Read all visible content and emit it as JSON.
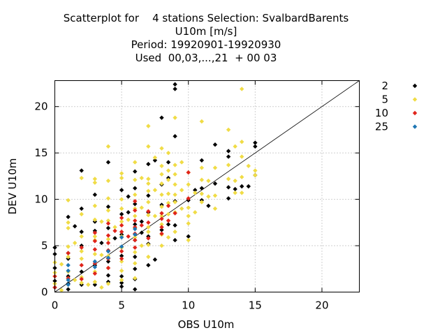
{
  "chart_data": {
    "type": "scatter",
    "title_lines": [
      "Scatterplot for    4 stations Selection: SvalbardBarents",
      "U10m [m/s]",
      "Period: 19920901-19920930",
      "Used  00,03,...,21  + 00 03"
    ],
    "xlabel": "OBS U10m",
    "ylabel": "DEV U10m",
    "xlim": [
      0,
      22.8
    ],
    "ylim": [
      0,
      22.8
    ],
    "xticks": [
      0,
      5,
      10,
      15,
      20
    ],
    "yticks": [
      0,
      5,
      10,
      15,
      20
    ],
    "grid": true,
    "diagonal_line": true,
    "legend_position": "right",
    "colors": {
      "2": "#000000",
      "5": "#f0dc46",
      "10": "#e0241b",
      "25": "#1f77b4"
    },
    "series": [
      {
        "name": "2",
        "points": [
          [
            0,
            4.8
          ],
          [
            0,
            4.1
          ],
          [
            0,
            2.6
          ],
          [
            0,
            1.2
          ],
          [
            0,
            0.5
          ],
          [
            1,
            8.1
          ],
          [
            1,
            4.2
          ],
          [
            1,
            3.6
          ],
          [
            1,
            1.7
          ],
          [
            1,
            0.9
          ],
          [
            1,
            0.3
          ],
          [
            1.5,
            7.1
          ],
          [
            2,
            13.1
          ],
          [
            2,
            9.0
          ],
          [
            2,
            6.5
          ],
          [
            2,
            5.0
          ],
          [
            2,
            2.2
          ],
          [
            2,
            0.8
          ],
          [
            3,
            10.5
          ],
          [
            3,
            7.6
          ],
          [
            3,
            6.6
          ],
          [
            3,
            2.9
          ],
          [
            3,
            0.8
          ],
          [
            3.5,
            5.3
          ],
          [
            4,
            14.0
          ],
          [
            4,
            9.2
          ],
          [
            4,
            6.9
          ],
          [
            4,
            4.4
          ],
          [
            4,
            3.3
          ],
          [
            4,
            1.8
          ],
          [
            4,
            1.1
          ],
          [
            4.5,
            5.8
          ],
          [
            5,
            11.0
          ],
          [
            5,
            8.4
          ],
          [
            5,
            6.2
          ],
          [
            5,
            3.9
          ],
          [
            5,
            1.7
          ],
          [
            5,
            1.0
          ],
          [
            5,
            0.6
          ],
          [
            5.5,
            10.3
          ],
          [
            5.5,
            8.6
          ],
          [
            6,
            13.0
          ],
          [
            6,
            11.2
          ],
          [
            6,
            9.5
          ],
          [
            6,
            7.3
          ],
          [
            6,
            5.6
          ],
          [
            6,
            3.8
          ],
          [
            6,
            2.5
          ],
          [
            6,
            1.4
          ],
          [
            6,
            0.3
          ],
          [
            6.5,
            7.6
          ],
          [
            6.5,
            6.4
          ],
          [
            7,
            13.8
          ],
          [
            7,
            10.4
          ],
          [
            7,
            8.6
          ],
          [
            7,
            6.0
          ],
          [
            7,
            5.2
          ],
          [
            7,
            2.9
          ],
          [
            7.5,
            14.2
          ],
          [
            7.5,
            3.5
          ],
          [
            8,
            18.8
          ],
          [
            8,
            11.6
          ],
          [
            8,
            9.4
          ],
          [
            8,
            6.7
          ],
          [
            8.5,
            14.0
          ],
          [
            8.5,
            12.3
          ],
          [
            8.5,
            7.3
          ],
          [
            9,
            22.4
          ],
          [
            9,
            21.9
          ],
          [
            9,
            16.8
          ],
          [
            9,
            9.8
          ],
          [
            9,
            7.2
          ],
          [
            9,
            5.6
          ],
          [
            10,
            9.9
          ],
          [
            10,
            6.0
          ],
          [
            10.5,
            11.0
          ],
          [
            11,
            14.2
          ],
          [
            11,
            11.2
          ],
          [
            11,
            9.9
          ],
          [
            11.5,
            9.3
          ],
          [
            12,
            15.9
          ],
          [
            12,
            11.7
          ],
          [
            13,
            15.2
          ],
          [
            13,
            14.6
          ],
          [
            13,
            11.3
          ],
          [
            13,
            10.1
          ],
          [
            13.5,
            11.1
          ],
          [
            14,
            11.4
          ],
          [
            14.5,
            11.4
          ],
          [
            15,
            16.1
          ],
          [
            15,
            15.7
          ],
          [
            15,
            12.6
          ]
        ]
      },
      {
        "name": "5",
        "points": [
          [
            0,
            3.2
          ],
          [
            0,
            2.1
          ],
          [
            0,
            1.7
          ],
          [
            0,
            0.9
          ],
          [
            0.5,
            3.0
          ],
          [
            0.5,
            0.2
          ],
          [
            1,
            9.9
          ],
          [
            1,
            7.5
          ],
          [
            1,
            6.9
          ],
          [
            1,
            4.9
          ],
          [
            1,
            3.8
          ],
          [
            1,
            2.2
          ],
          [
            1,
            1.5
          ],
          [
            1.5,
            5.3
          ],
          [
            1.5,
            1.3
          ],
          [
            2,
            12.3
          ],
          [
            2,
            8.4
          ],
          [
            2,
            6.0
          ],
          [
            2,
            4.4
          ],
          [
            2,
            3.6
          ],
          [
            2,
            1.6
          ],
          [
            2,
            1.0
          ],
          [
            2.5,
            0.8
          ],
          [
            3,
            12.2
          ],
          [
            3,
            11.8
          ],
          [
            3,
            9.3
          ],
          [
            3,
            7.8
          ],
          [
            3,
            6.0
          ],
          [
            3,
            5.6
          ],
          [
            3,
            4.1
          ],
          [
            3,
            2.2
          ],
          [
            3,
            1.1
          ],
          [
            3.5,
            7.6
          ],
          [
            3.5,
            4.0
          ],
          [
            3.5,
            0.5
          ],
          [
            4,
            15.7
          ],
          [
            4,
            12.0
          ],
          [
            4,
            10.1
          ],
          [
            4,
            8.8
          ],
          [
            4,
            7.7
          ],
          [
            4,
            5.7
          ],
          [
            4,
            3.9
          ],
          [
            4,
            2.6
          ],
          [
            4,
            0.9
          ],
          [
            4.5,
            7.0
          ],
          [
            5,
            12.8
          ],
          [
            5,
            12.3
          ],
          [
            5,
            10.0
          ],
          [
            5,
            9.0
          ],
          [
            5,
            7.6
          ],
          [
            5,
            6.0
          ],
          [
            5,
            4.8
          ],
          [
            5,
            3.3
          ],
          [
            5,
            2.3
          ],
          [
            5,
            1.3
          ],
          [
            5.5,
            7.8
          ],
          [
            6,
            14.0
          ],
          [
            6,
            12.1
          ],
          [
            6,
            10.5
          ],
          [
            6,
            9.0
          ],
          [
            6,
            8.2
          ],
          [
            6,
            6.9
          ],
          [
            6,
            5.9
          ],
          [
            6,
            4.3
          ],
          [
            6,
            3.1
          ],
          [
            6,
            1.5
          ],
          [
            6.5,
            12.3
          ],
          [
            6.5,
            9.1
          ],
          [
            6.5,
            5.0
          ],
          [
            7,
            17.9
          ],
          [
            7,
            15.7
          ],
          [
            7,
            12.2
          ],
          [
            7,
            11.7
          ],
          [
            7,
            10.9
          ],
          [
            7,
            9.7
          ],
          [
            7,
            8.3
          ],
          [
            7,
            7.0
          ],
          [
            7,
            6.5
          ],
          [
            7,
            5.1
          ],
          [
            7,
            3.8
          ],
          [
            7.5,
            14.5
          ],
          [
            7.5,
            11.0
          ],
          [
            7.5,
            8.2
          ],
          [
            8,
            15.5
          ],
          [
            8,
            13.6
          ],
          [
            8,
            12.7
          ],
          [
            8,
            11.7
          ],
          [
            8,
            10.5
          ],
          [
            8,
            9.2
          ],
          [
            8,
            8.2
          ],
          [
            8,
            7.3
          ],
          [
            8,
            6.2
          ],
          [
            8,
            5.0
          ],
          [
            8.5,
            15.0
          ],
          [
            8.5,
            13.1
          ],
          [
            8.5,
            12.1
          ],
          [
            8.5,
            10.6
          ],
          [
            8.5,
            9.6
          ],
          [
            8.5,
            8.4
          ],
          [
            8.5,
            5.9
          ],
          [
            9,
            18.8
          ],
          [
            9,
            13.7
          ],
          [
            9,
            12.7
          ],
          [
            9,
            11.6
          ],
          [
            9,
            10.5
          ],
          [
            9,
            9.7
          ],
          [
            9,
            8.6
          ],
          [
            9,
            6.5
          ],
          [
            9.5,
            14.0
          ],
          [
            9.5,
            11.0
          ],
          [
            9.5,
            9.0
          ],
          [
            10,
            12.9
          ],
          [
            10,
            11.6
          ],
          [
            10,
            9.1
          ],
          [
            10,
            8.2
          ],
          [
            10,
            7.4
          ],
          [
            10,
            5.6
          ],
          [
            10.5,
            10.7
          ],
          [
            10.5,
            8.6
          ],
          [
            11,
            18.4
          ],
          [
            11,
            13.4
          ],
          [
            11,
            12.1
          ],
          [
            11,
            10.6
          ],
          [
            11,
            9.7
          ],
          [
            11.5,
            12.0
          ],
          [
            11.5,
            10.3
          ],
          [
            12,
            13.4
          ],
          [
            12,
            10.4
          ],
          [
            12,
            9.0
          ],
          [
            13,
            17.5
          ],
          [
            13,
            13.7
          ],
          [
            13,
            12.2
          ],
          [
            13.5,
            15.7
          ],
          [
            13.5,
            12.0
          ],
          [
            13.5,
            10.7
          ],
          [
            14,
            21.9
          ],
          [
            14,
            16.2
          ],
          [
            14,
            14.6
          ],
          [
            14,
            12.4
          ],
          [
            14,
            10.7
          ],
          [
            14.5,
            13.6
          ],
          [
            15,
            13.1
          ],
          [
            15,
            12.6
          ]
        ]
      },
      {
        "name": "10",
        "points": [
          [
            0,
            1.7
          ],
          [
            0,
            0.5
          ],
          [
            1,
            4.2
          ],
          [
            1,
            1.5
          ],
          [
            2,
            4.8
          ],
          [
            2,
            2.9
          ],
          [
            2,
            1.4
          ],
          [
            3,
            6.4
          ],
          [
            3,
            5.5
          ],
          [
            3,
            4.6
          ],
          [
            3,
            3.1
          ],
          [
            3,
            2.0
          ],
          [
            4,
            7.4
          ],
          [
            4,
            6.1
          ],
          [
            4,
            5.3
          ],
          [
            4,
            4.5
          ],
          [
            4,
            3.6
          ],
          [
            4,
            2.6
          ],
          [
            4.5,
            6.6
          ],
          [
            5,
            8.0
          ],
          [
            5,
            7.2
          ],
          [
            5,
            6.5
          ],
          [
            5,
            4.4
          ],
          [
            5,
            3.6
          ],
          [
            5.5,
            6.0
          ],
          [
            6,
            9.8
          ],
          [
            6,
            8.8
          ],
          [
            6,
            7.7
          ],
          [
            6,
            7.0
          ],
          [
            6,
            6.3
          ],
          [
            6,
            5.6
          ],
          [
            6,
            4.8
          ],
          [
            6.5,
            7.2
          ],
          [
            7,
            8.7
          ],
          [
            7,
            7.5
          ],
          [
            7,
            5.8
          ],
          [
            8,
            8.5
          ],
          [
            8,
            7.9
          ],
          [
            8,
            7.0
          ],
          [
            8,
            6.3
          ],
          [
            8.5,
            9.3
          ],
          [
            8.5,
            7.7
          ],
          [
            9,
            8.5
          ],
          [
            10,
            12.9
          ],
          [
            10,
            10.1
          ]
        ]
      },
      {
        "name": "25",
        "points": [
          [
            1,
            2.9
          ],
          [
            1,
            2.3
          ],
          [
            1,
            1.3
          ],
          [
            1,
            0.8
          ],
          [
            3,
            3.3
          ],
          [
            3,
            2.7
          ],
          [
            4,
            4.4
          ],
          [
            4,
            3.7
          ],
          [
            5,
            5.9
          ],
          [
            5,
            4.9
          ],
          [
            6,
            6.8
          ],
          [
            6,
            6.2
          ]
        ]
      }
    ]
  }
}
